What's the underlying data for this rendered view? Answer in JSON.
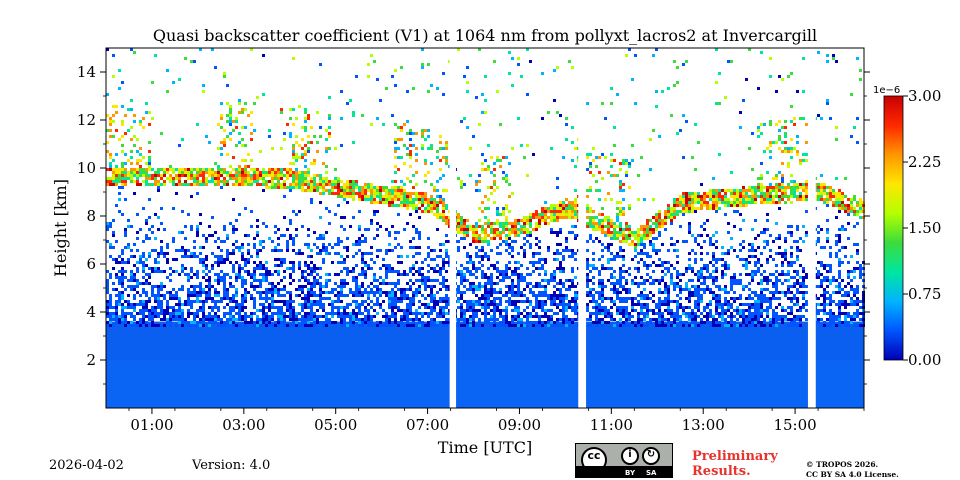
{
  "chart_data": {
    "type": "heatmap",
    "title": "Quasi backscatter coefficient (V1) at 1064 nm from pollyxt_lacros2 at Invercargill",
    "xlabel": "Time [UTC]",
    "ylabel": "Height [km]",
    "xlim": [
      0,
      16.5
    ],
    "ylim": [
      0,
      15
    ],
    "x_ticks": [
      1,
      3,
      5,
      7,
      9,
      11,
      13,
      15
    ],
    "x_tick_labels": [
      "01:00",
      "03:00",
      "05:00",
      "07:00",
      "09:00",
      "11:00",
      "13:00",
      "15:00"
    ],
    "y_ticks": [
      2,
      4,
      6,
      8,
      10,
      12,
      14
    ],
    "y_tick_labels": [
      "2",
      "4",
      "6",
      "8",
      "10",
      "12",
      "14"
    ],
    "colorbar": {
      "multiplier_label": "1e−6",
      "min": 0,
      "max": 3.0,
      "ticks": [
        0,
        0.75,
        1.5,
        2.25,
        3.0
      ],
      "tick_labels": [
        "0.00",
        "0.75",
        "1.50",
        "2.25",
        "3.00"
      ],
      "colormap": [
        "#0000b4",
        "#0055ff",
        "#00b4ff",
        "#00e6a0",
        "#3cdc3c",
        "#b4ff00",
        "#ffe600",
        "#ff9600",
        "#ff2800",
        "#c80000"
      ]
    },
    "approx_cloud_base_km": [
      {
        "t": 2.8,
        "base": 9.6
      },
      {
        "t": 4.0,
        "base": 9.5
      },
      {
        "t": 5.5,
        "base": 9.0
      },
      {
        "t": 7.0,
        "base": 8.5
      },
      {
        "t": 8.0,
        "base": 7.2
      },
      {
        "t": 9.0,
        "base": 7.5
      },
      {
        "t": 10.0,
        "base": 8.3
      },
      {
        "t": 11.5,
        "base": 7.0
      },
      {
        "t": 12.5,
        "base": 8.5
      },
      {
        "t": 14.0,
        "base": 8.8
      },
      {
        "t": 15.5,
        "base": 9.0
      },
      {
        "t": 16.5,
        "base": 8.2
      }
    ],
    "data_gaps_utc": [
      [
        7.48,
        7.62
      ],
      [
        10.28,
        10.45
      ],
      [
        15.28,
        15.45
      ]
    ]
  },
  "footer": {
    "date": "2026-04-02",
    "version": "Version: 4.0",
    "preliminary": [
      "Preliminary",
      "Results."
    ],
    "copyright": [
      "© TROPOS 2026.",
      "CC BY SA 4.0 License."
    ],
    "license_badge": {
      "by": "BY",
      "sa": "SA",
      "cc": "cc"
    }
  }
}
